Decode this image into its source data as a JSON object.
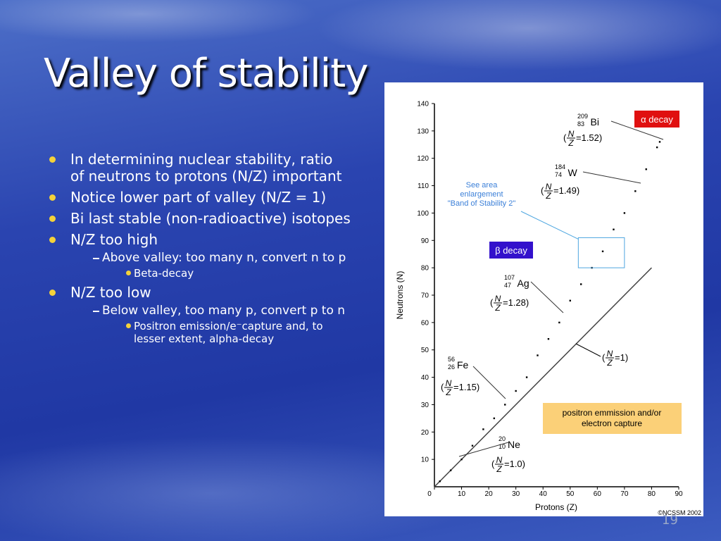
{
  "slide": {
    "title": "Valley of stability",
    "number": "19",
    "bullets": [
      {
        "text": "In determining nuclear stability, ratio of neutrons to protons (N/Z) important"
      },
      {
        "text": "Notice lower part of valley (N/Z = 1)"
      },
      {
        "text": "Bi last stable (non-radioactive) isotopes"
      },
      {
        "text": "N/Z too high",
        "children": [
          {
            "text": "Above valley: too many n, convert n to p",
            "children": [
              {
                "text": "Beta-decay"
              }
            ]
          }
        ]
      },
      {
        "text": "N/Z too low",
        "children": [
          {
            "text": "Below valley, too many p, convert p to n",
            "children": [
              {
                "text": "Positron emission/e⁻capture and, to lesser extent, alpha-decay"
              }
            ]
          }
        ]
      }
    ]
  },
  "chart_data": {
    "type": "scatter",
    "xlabel": "Protons (Z)",
    "ylabel": "Neutrons (N)",
    "xlim": [
      0,
      90
    ],
    "ylim": [
      0,
      140
    ],
    "xticks": [
      0,
      10,
      20,
      30,
      40,
      50,
      60,
      70,
      80,
      90
    ],
    "yticks": [
      10,
      20,
      30,
      40,
      50,
      60,
      70,
      80,
      90,
      100,
      110,
      120,
      130,
      140
    ],
    "color": "#000000",
    "x": [
      2,
      6,
      10,
      14,
      18,
      22,
      26,
      30,
      34,
      38,
      42,
      46,
      50,
      54,
      58,
      62,
      66,
      70,
      74,
      78,
      82,
      83
    ],
    "y": [
      2,
      6,
      10,
      15,
      21,
      25,
      30,
      35,
      40,
      48,
      54,
      60,
      68,
      74,
      80,
      86,
      94,
      100,
      108,
      116,
      124,
      126
    ],
    "reference_line": {
      "x": [
        0,
        80
      ],
      "y": [
        0,
        80
      ],
      "color": "#444444",
      "ratio": {
        "open": "(",
        "top": "N",
        "bottom": "Z",
        "rest": "=1)"
      }
    },
    "highlight": {
      "xlim": [
        53,
        70
      ],
      "ylim": [
        80,
        91
      ],
      "color": "#4da6e0"
    },
    "annotations": [
      {
        "mass": "209",
        "number": "83",
        "symbol": "Bi",
        "ratio": {
          "open": "(",
          "top": "N",
          "bottom": "Z",
          "rest": "=1.52)"
        }
      },
      {
        "mass": "184",
        "number": "74",
        "symbol": "W",
        "ratio": {
          "open": "(",
          "top": "N",
          "bottom": "Z",
          "rest": "=1.49)"
        }
      },
      {
        "mass": "107",
        "number": "47",
        "symbol": "Ag",
        "ratio": {
          "open": "(",
          "top": "N",
          "bottom": "Z",
          "rest": "=1.28)"
        }
      },
      {
        "mass": "56",
        "number": "26",
        "symbol": "Fe",
        "ratio": {
          "open": "(",
          "top": "N",
          "bottom": "Z",
          "rest": "=1.15)"
        }
      },
      {
        "mass": "20",
        "number": "10",
        "symbol": "Ne",
        "ratio": {
          "open": "(",
          "top": "N",
          "bottom": "Z",
          "rest": "=1.0)"
        }
      }
    ],
    "alpha_box": "α decay",
    "beta_box": "β decay",
    "enlargement_note": [
      "See area",
      "enlargement",
      "\"Band of Stability 2\""
    ],
    "positron_box": [
      "positron emmission and/or",
      "electron capture"
    ],
    "copyright": "©NCSSM 2002"
  }
}
